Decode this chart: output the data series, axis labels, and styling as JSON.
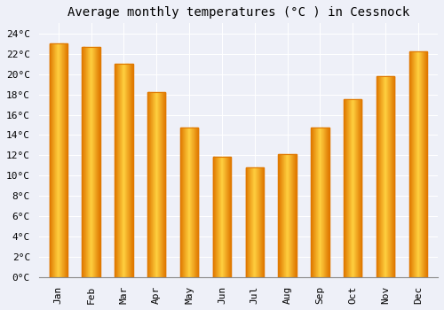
{
  "title": "Average monthly temperatures (°C ) in Cessnock",
  "months": [
    "Jan",
    "Feb",
    "Mar",
    "Apr",
    "May",
    "Jun",
    "Jul",
    "Aug",
    "Sep",
    "Oct",
    "Nov",
    "Dec"
  ],
  "values": [
    23.0,
    22.7,
    21.0,
    18.2,
    14.7,
    11.9,
    10.8,
    12.1,
    14.7,
    17.5,
    19.8,
    22.2
  ],
  "bar_color_main": "#FFC020",
  "bar_color_edge": "#E07800",
  "ylim": [
    0,
    25
  ],
  "yticks": [
    0,
    2,
    4,
    6,
    8,
    10,
    12,
    14,
    16,
    18,
    20,
    22,
    24
  ],
  "background_color": "#EEF0F8",
  "plot_bg_color": "#EEF0F8",
  "grid_color": "#FFFFFF",
  "title_fontsize": 10,
  "tick_fontsize": 8,
  "font_family": "monospace",
  "bar_width": 0.55
}
